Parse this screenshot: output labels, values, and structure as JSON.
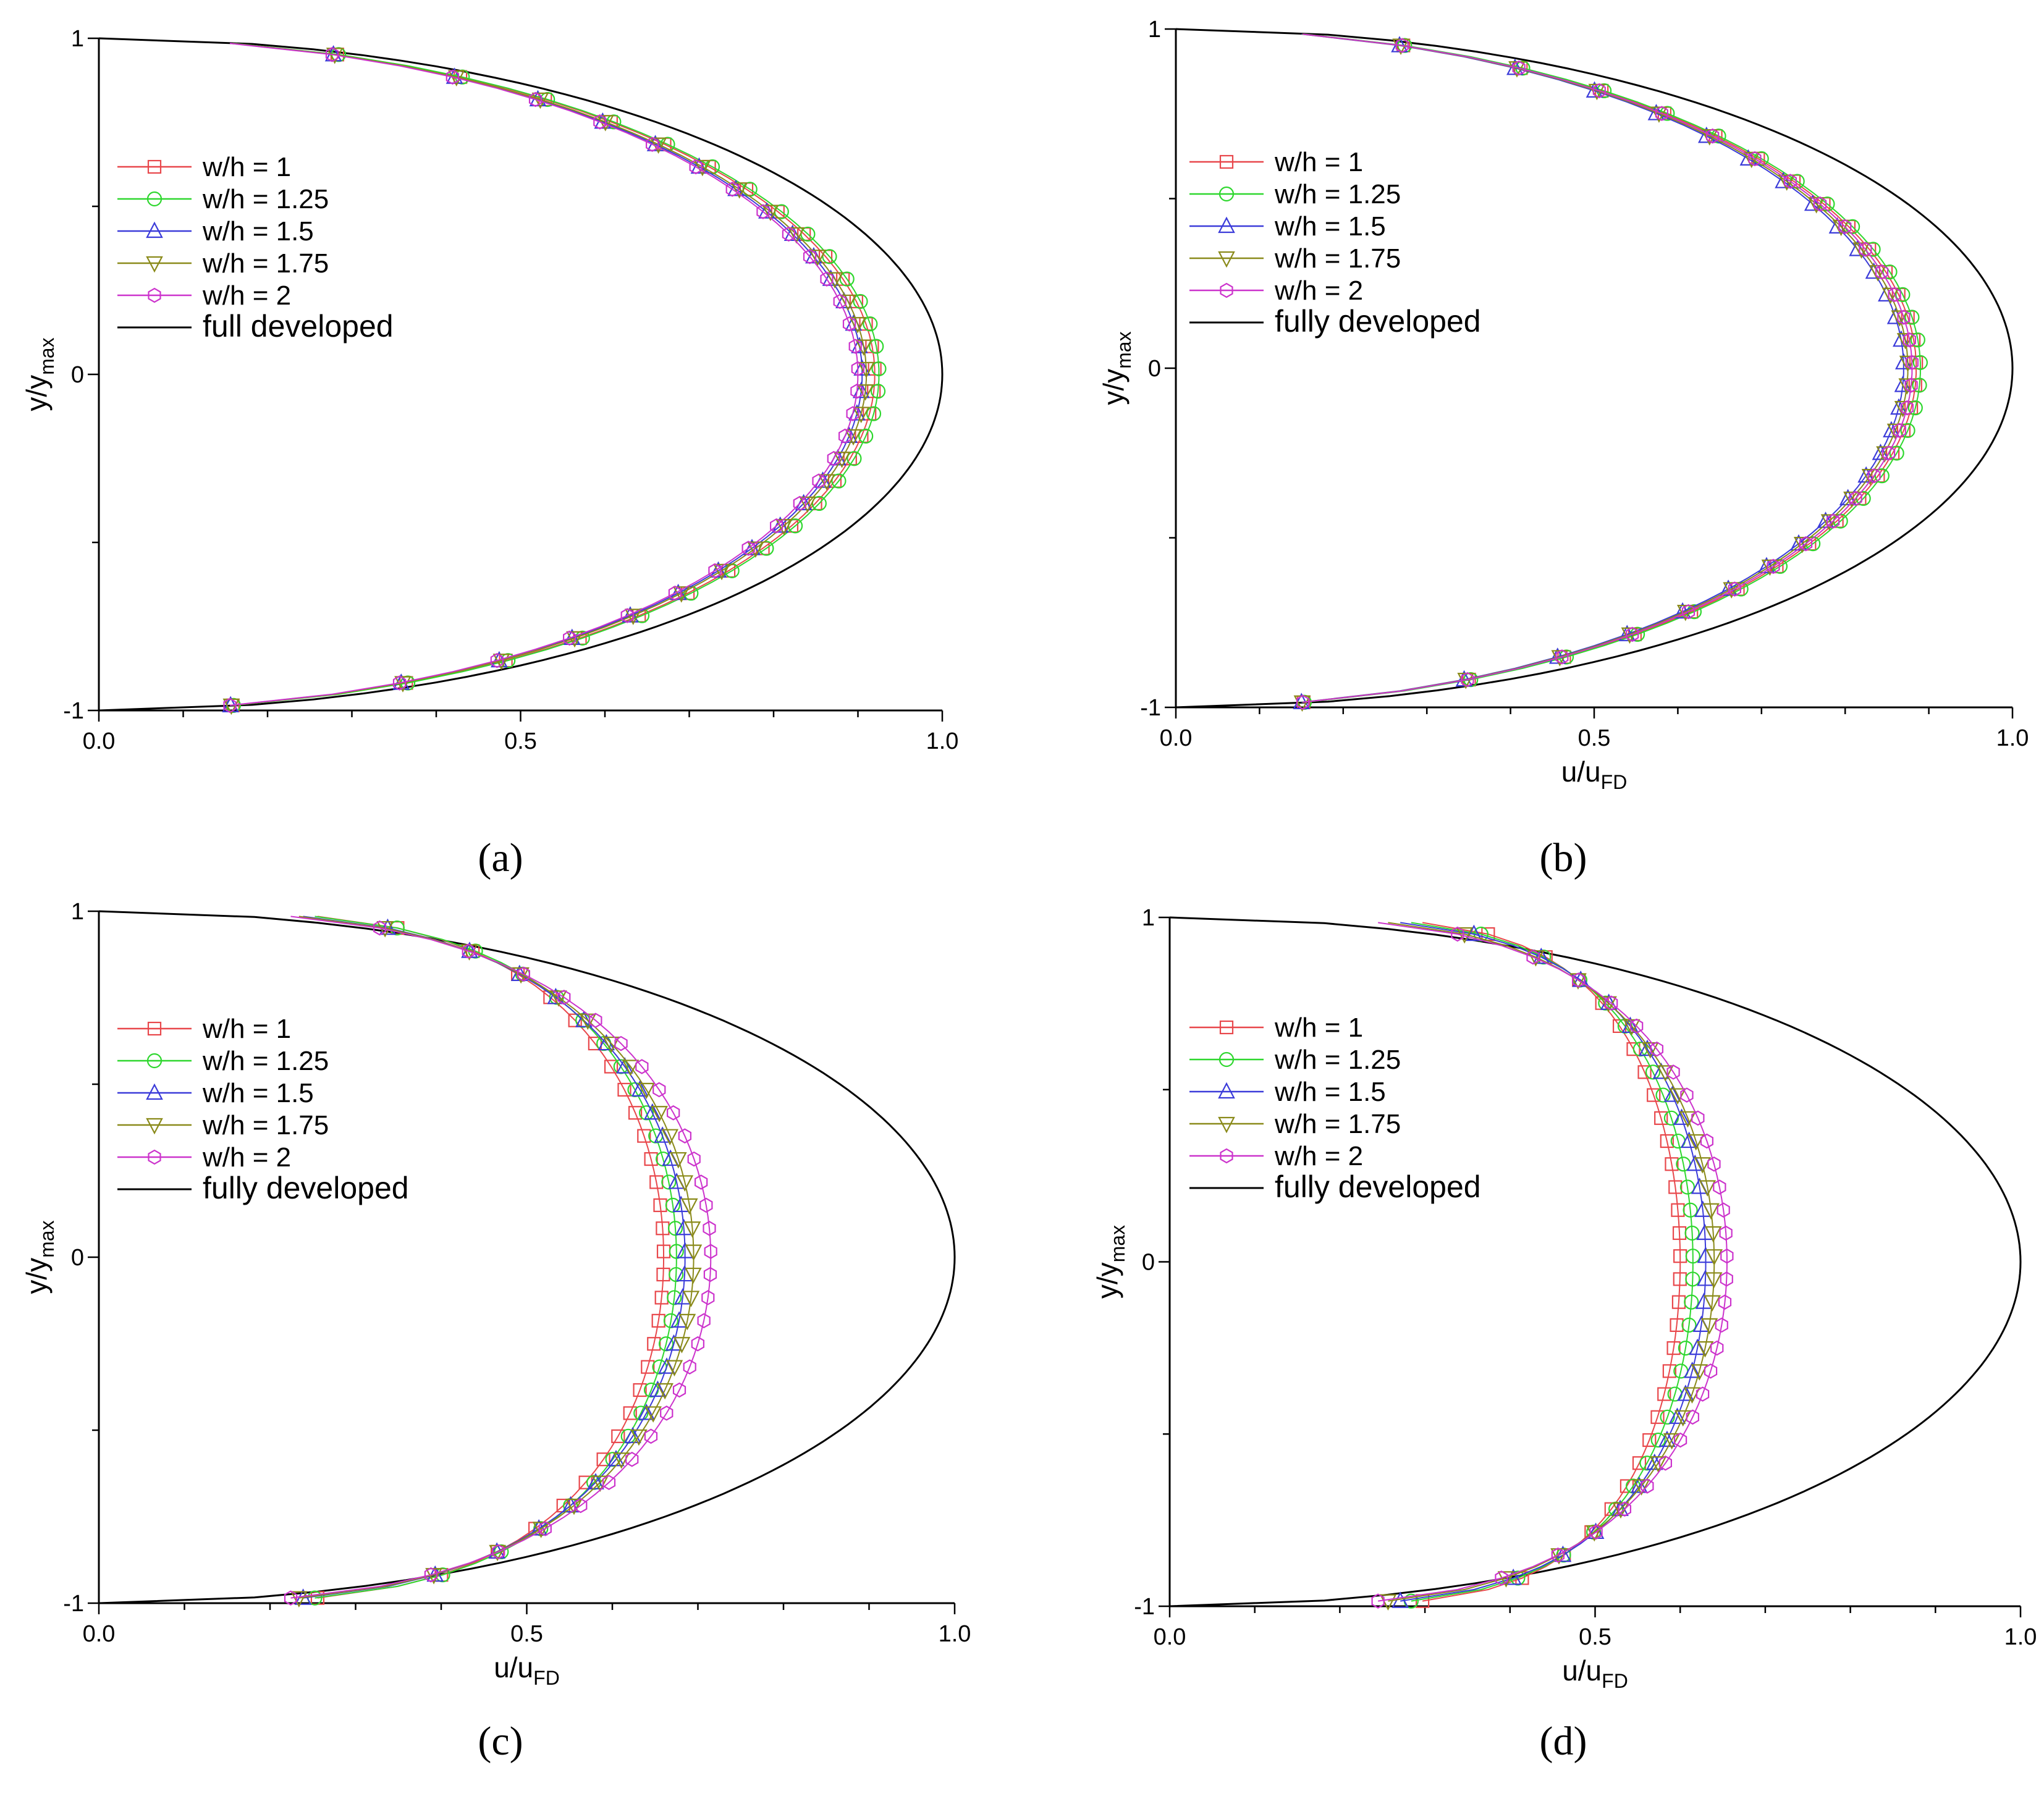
{
  "panel_labels": [
    "(a)",
    "(b)",
    "(c)",
    "(d)"
  ],
  "colors": {
    "w/h = 1": "#e8474b",
    "w/h = 1.25": "#2ed72e",
    "w/h = 1.5": "#3b3bd9",
    "w/h = 1.75": "#8a8a1a",
    "w/h = 2": "#cc33cc",
    "reference": "#000000"
  },
  "chart_data": [
    {
      "panel": "(a)",
      "type": "line",
      "xlabel": "",
      "ylabel": "y/y",
      "ylabel_sub": "max",
      "xlim": [
        0,
        1
      ],
      "ylim": [
        -1,
        1
      ],
      "xticks": [
        "0.0",
        "0.5",
        "1.0"
      ],
      "yticks": [
        "-1",
        "0",
        "1"
      ],
      "grid": false,
      "legend_position": "upper-left",
      "series": [
        {
          "name": "w/h = 1",
          "marker": "square",
          "peak": 0.92,
          "n": 0.5
        },
        {
          "name": "w/h = 1.25",
          "marker": "circle",
          "peak": 0.925,
          "n": 0.5
        },
        {
          "name": "w/h = 1.5",
          "marker": "triangle-up",
          "peak": 0.905,
          "n": 0.5
        },
        {
          "name": "w/h = 1.75",
          "marker": "triangle-down",
          "peak": 0.91,
          "n": 0.5
        },
        {
          "name": "w/h = 2",
          "marker": "hexagon",
          "peak": 0.9,
          "n": 0.5
        }
      ],
      "reference": {
        "name": "full developed",
        "peak": 1.0,
        "n": 0.5
      }
    },
    {
      "panel": "(b)",
      "type": "line",
      "xlabel": "u/u",
      "xlabel_sub": "FD",
      "ylabel": "y/y",
      "ylabel_sub": "max",
      "xlim": [
        0,
        1
      ],
      "ylim": [
        -1,
        1
      ],
      "xticks": [
        "0.0",
        "0.5",
        "1.0"
      ],
      "yticks": [
        "-1",
        "0",
        "1"
      ],
      "grid": false,
      "legend_position": "upper-left",
      "series": [
        {
          "name": "w/h = 1",
          "marker": "square",
          "peak": 0.885,
          "n": 0.5
        },
        {
          "name": "w/h = 1.25",
          "marker": "circle",
          "peak": 0.89,
          "n": 0.5
        },
        {
          "name": "w/h = 1.5",
          "marker": "triangle-up",
          "peak": 0.87,
          "n": 0.5
        },
        {
          "name": "w/h = 1.75",
          "marker": "triangle-down",
          "peak": 0.875,
          "n": 0.5
        },
        {
          "name": "w/h = 2",
          "marker": "hexagon",
          "peak": 0.88,
          "n": 0.5
        }
      ],
      "reference": {
        "name": "fully developed",
        "peak": 1.0,
        "n": 0.5
      }
    },
    {
      "panel": "(c)",
      "type": "line",
      "xlabel": "u/u",
      "xlabel_sub": "FD",
      "ylabel": "y/y",
      "ylabel_sub": "max",
      "xlim": [
        0,
        1
      ],
      "ylim": [
        -1,
        1
      ],
      "xticks": [
        "0.0",
        "0.5",
        "1.0"
      ],
      "yticks": [
        "-1",
        "0",
        "1"
      ],
      "grid": false,
      "legend_position": "upper-left",
      "series": [
        {
          "name": "w/h = 1",
          "marker": "square",
          "peak": 0.66,
          "n": 0.27
        },
        {
          "name": "w/h = 1.25",
          "marker": "circle",
          "peak": 0.675,
          "n": 0.28
        },
        {
          "name": "w/h = 1.5",
          "marker": "triangle-up",
          "peak": 0.685,
          "n": 0.3
        },
        {
          "name": "w/h = 1.75",
          "marker": "triangle-down",
          "peak": 0.695,
          "n": 0.31
        },
        {
          "name": "w/h = 2",
          "marker": "hexagon",
          "peak": 0.715,
          "n": 0.33
        }
      ],
      "reference": {
        "name": "fully developed",
        "peak": 1.0,
        "n": 0.5
      }
    },
    {
      "panel": "(d)",
      "type": "line",
      "xlabel": "u/u",
      "xlabel_sub": "FD",
      "ylabel": "y/y",
      "ylabel_sub": "max",
      "xlim": [
        0,
        1
      ],
      "ylim": [
        -1,
        1
      ],
      "xticks": [
        "0.0",
        "0.5",
        "1.0"
      ],
      "yticks": [
        "-1",
        "0",
        "1"
      ],
      "grid": false,
      "legend_position": "upper-left",
      "series": [
        {
          "name": "w/h = 1",
          "marker": "square",
          "peak": 0.6,
          "n": 0.2
        },
        {
          "name": "w/h = 1.25",
          "marker": "circle",
          "peak": 0.615,
          "n": 0.22
        },
        {
          "name": "w/h = 1.5",
          "marker": "triangle-up",
          "peak": 0.63,
          "n": 0.24
        },
        {
          "name": "w/h = 1.75",
          "marker": "triangle-down",
          "peak": 0.64,
          "n": 0.26
        },
        {
          "name": "w/h = 2",
          "marker": "hexagon",
          "peak": 0.655,
          "n": 0.28
        }
      ],
      "reference": {
        "name": "fully developed",
        "peak": 1.0,
        "n": 0.5
      }
    }
  ]
}
